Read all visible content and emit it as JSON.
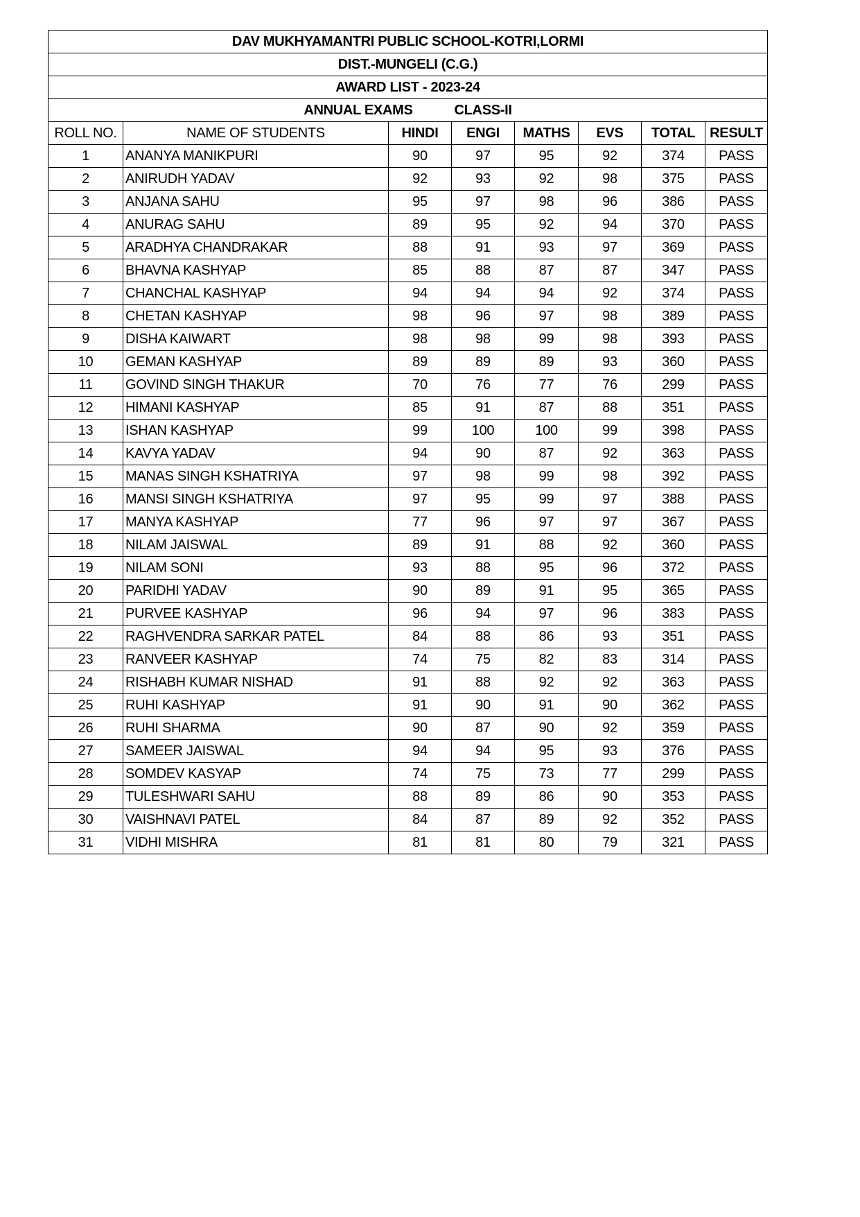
{
  "titles": {
    "school": "DAV MUKHYAMANTRI PUBLIC SCHOOL-KOTRI,LORMI",
    "district": "DIST.-MUNGELI (C.G.)",
    "award_list": "AWARD LIST - 2023-24",
    "exam": "ANNUAL EXAMS",
    "class": "CLASS-II"
  },
  "columns": [
    "ROLL NO.",
    "NAME OF STUDENTS",
    "HINDI",
    "ENGI",
    "MATHS",
    "EVS",
    "TOTAL",
    "RESULT"
  ],
  "rows": [
    [
      "1",
      "ANANYA MANIKPURI",
      "90",
      "97",
      "95",
      "92",
      "374",
      "PASS"
    ],
    [
      "2",
      "ANIRUDH YADAV",
      "92",
      "93",
      "92",
      "98",
      "375",
      "PASS"
    ],
    [
      "3",
      "ANJANA SAHU",
      "95",
      "97",
      "98",
      "96",
      "386",
      "PASS"
    ],
    [
      "4",
      "ANURAG SAHU",
      "89",
      "95",
      "92",
      "94",
      "370",
      "PASS"
    ],
    [
      "5",
      "ARADHYA CHANDRAKAR",
      "88",
      "91",
      "93",
      "97",
      "369",
      "PASS"
    ],
    [
      "6",
      "BHAVNA KASHYAP",
      "85",
      "88",
      "87",
      "87",
      "347",
      "PASS"
    ],
    [
      "7",
      "CHANCHAL KASHYAP",
      "94",
      "94",
      "94",
      "92",
      "374",
      "PASS"
    ],
    [
      "8",
      "CHETAN KASHYAP",
      "98",
      "96",
      "97",
      "98",
      "389",
      "PASS"
    ],
    [
      "9",
      "DISHA KAIWART",
      "98",
      "98",
      "99",
      "98",
      "393",
      "PASS"
    ],
    [
      "10",
      "GEMAN KASHYAP",
      "89",
      "89",
      "89",
      "93",
      "360",
      "PASS"
    ],
    [
      "11",
      "GOVIND SINGH THAKUR",
      "70",
      "76",
      "77",
      "76",
      "299",
      "PASS"
    ],
    [
      "12",
      "HIMANI KASHYAP",
      "85",
      "91",
      "87",
      "88",
      "351",
      "PASS"
    ],
    [
      "13",
      "ISHAN KASHYAP",
      "99",
      "100",
      "100",
      "99",
      "398",
      "PASS"
    ],
    [
      "14",
      "KAVYA YADAV",
      "94",
      "90",
      "87",
      "92",
      "363",
      "PASS"
    ],
    [
      "15",
      "MANAS SINGH KSHATRIYA",
      "97",
      "98",
      "99",
      "98",
      "392",
      "PASS"
    ],
    [
      "16",
      "MANSI SINGH KSHATRIYA",
      "97",
      "95",
      "99",
      "97",
      "388",
      "PASS"
    ],
    [
      "17",
      "MANYA KASHYAP",
      "77",
      "96",
      "97",
      "97",
      "367",
      "PASS"
    ],
    [
      "18",
      "NILAM JAISWAL",
      "89",
      "91",
      "88",
      "92",
      "360",
      "PASS"
    ],
    [
      "19",
      "NILAM SONI",
      "93",
      "88",
      "95",
      "96",
      "372",
      "PASS"
    ],
    [
      "20",
      "PARIDHI YADAV",
      "90",
      "89",
      "91",
      "95",
      "365",
      "PASS"
    ],
    [
      "21",
      "PURVEE KASHYAP",
      "96",
      "94",
      "97",
      "96",
      "383",
      "PASS"
    ],
    [
      "22",
      "RAGHVENDRA SARKAR PATEL",
      "84",
      "88",
      "86",
      "93",
      "351",
      "PASS"
    ],
    [
      "23",
      "RANVEER KASHYAP",
      "74",
      "75",
      "82",
      "83",
      "314",
      "PASS"
    ],
    [
      "24",
      "RISHABH KUMAR NISHAD",
      "91",
      "88",
      "92",
      "92",
      "363",
      "PASS"
    ],
    [
      "25",
      "RUHI KASHYAP",
      "91",
      "90",
      "91",
      "90",
      "362",
      "PASS"
    ],
    [
      "26",
      "RUHI SHARMA",
      "90",
      "87",
      "90",
      "92",
      "359",
      "PASS"
    ],
    [
      "27",
      "SAMEER JAISWAL",
      "94",
      "94",
      "95",
      "93",
      "376",
      "PASS"
    ],
    [
      "28",
      "SOMDEV KASYAP",
      "74",
      "75",
      "73",
      "77",
      "299",
      "PASS"
    ],
    [
      "29",
      "TULESHWARI SAHU",
      "88",
      "89",
      "86",
      "90",
      "353",
      "PASS"
    ],
    [
      "30",
      "VAISHNAVI PATEL",
      "84",
      "87",
      "89",
      "92",
      "352",
      "PASS"
    ],
    [
      "31",
      "VIDHI MISHRA",
      "81",
      "81",
      "80",
      "79",
      "321",
      "PASS"
    ]
  ]
}
